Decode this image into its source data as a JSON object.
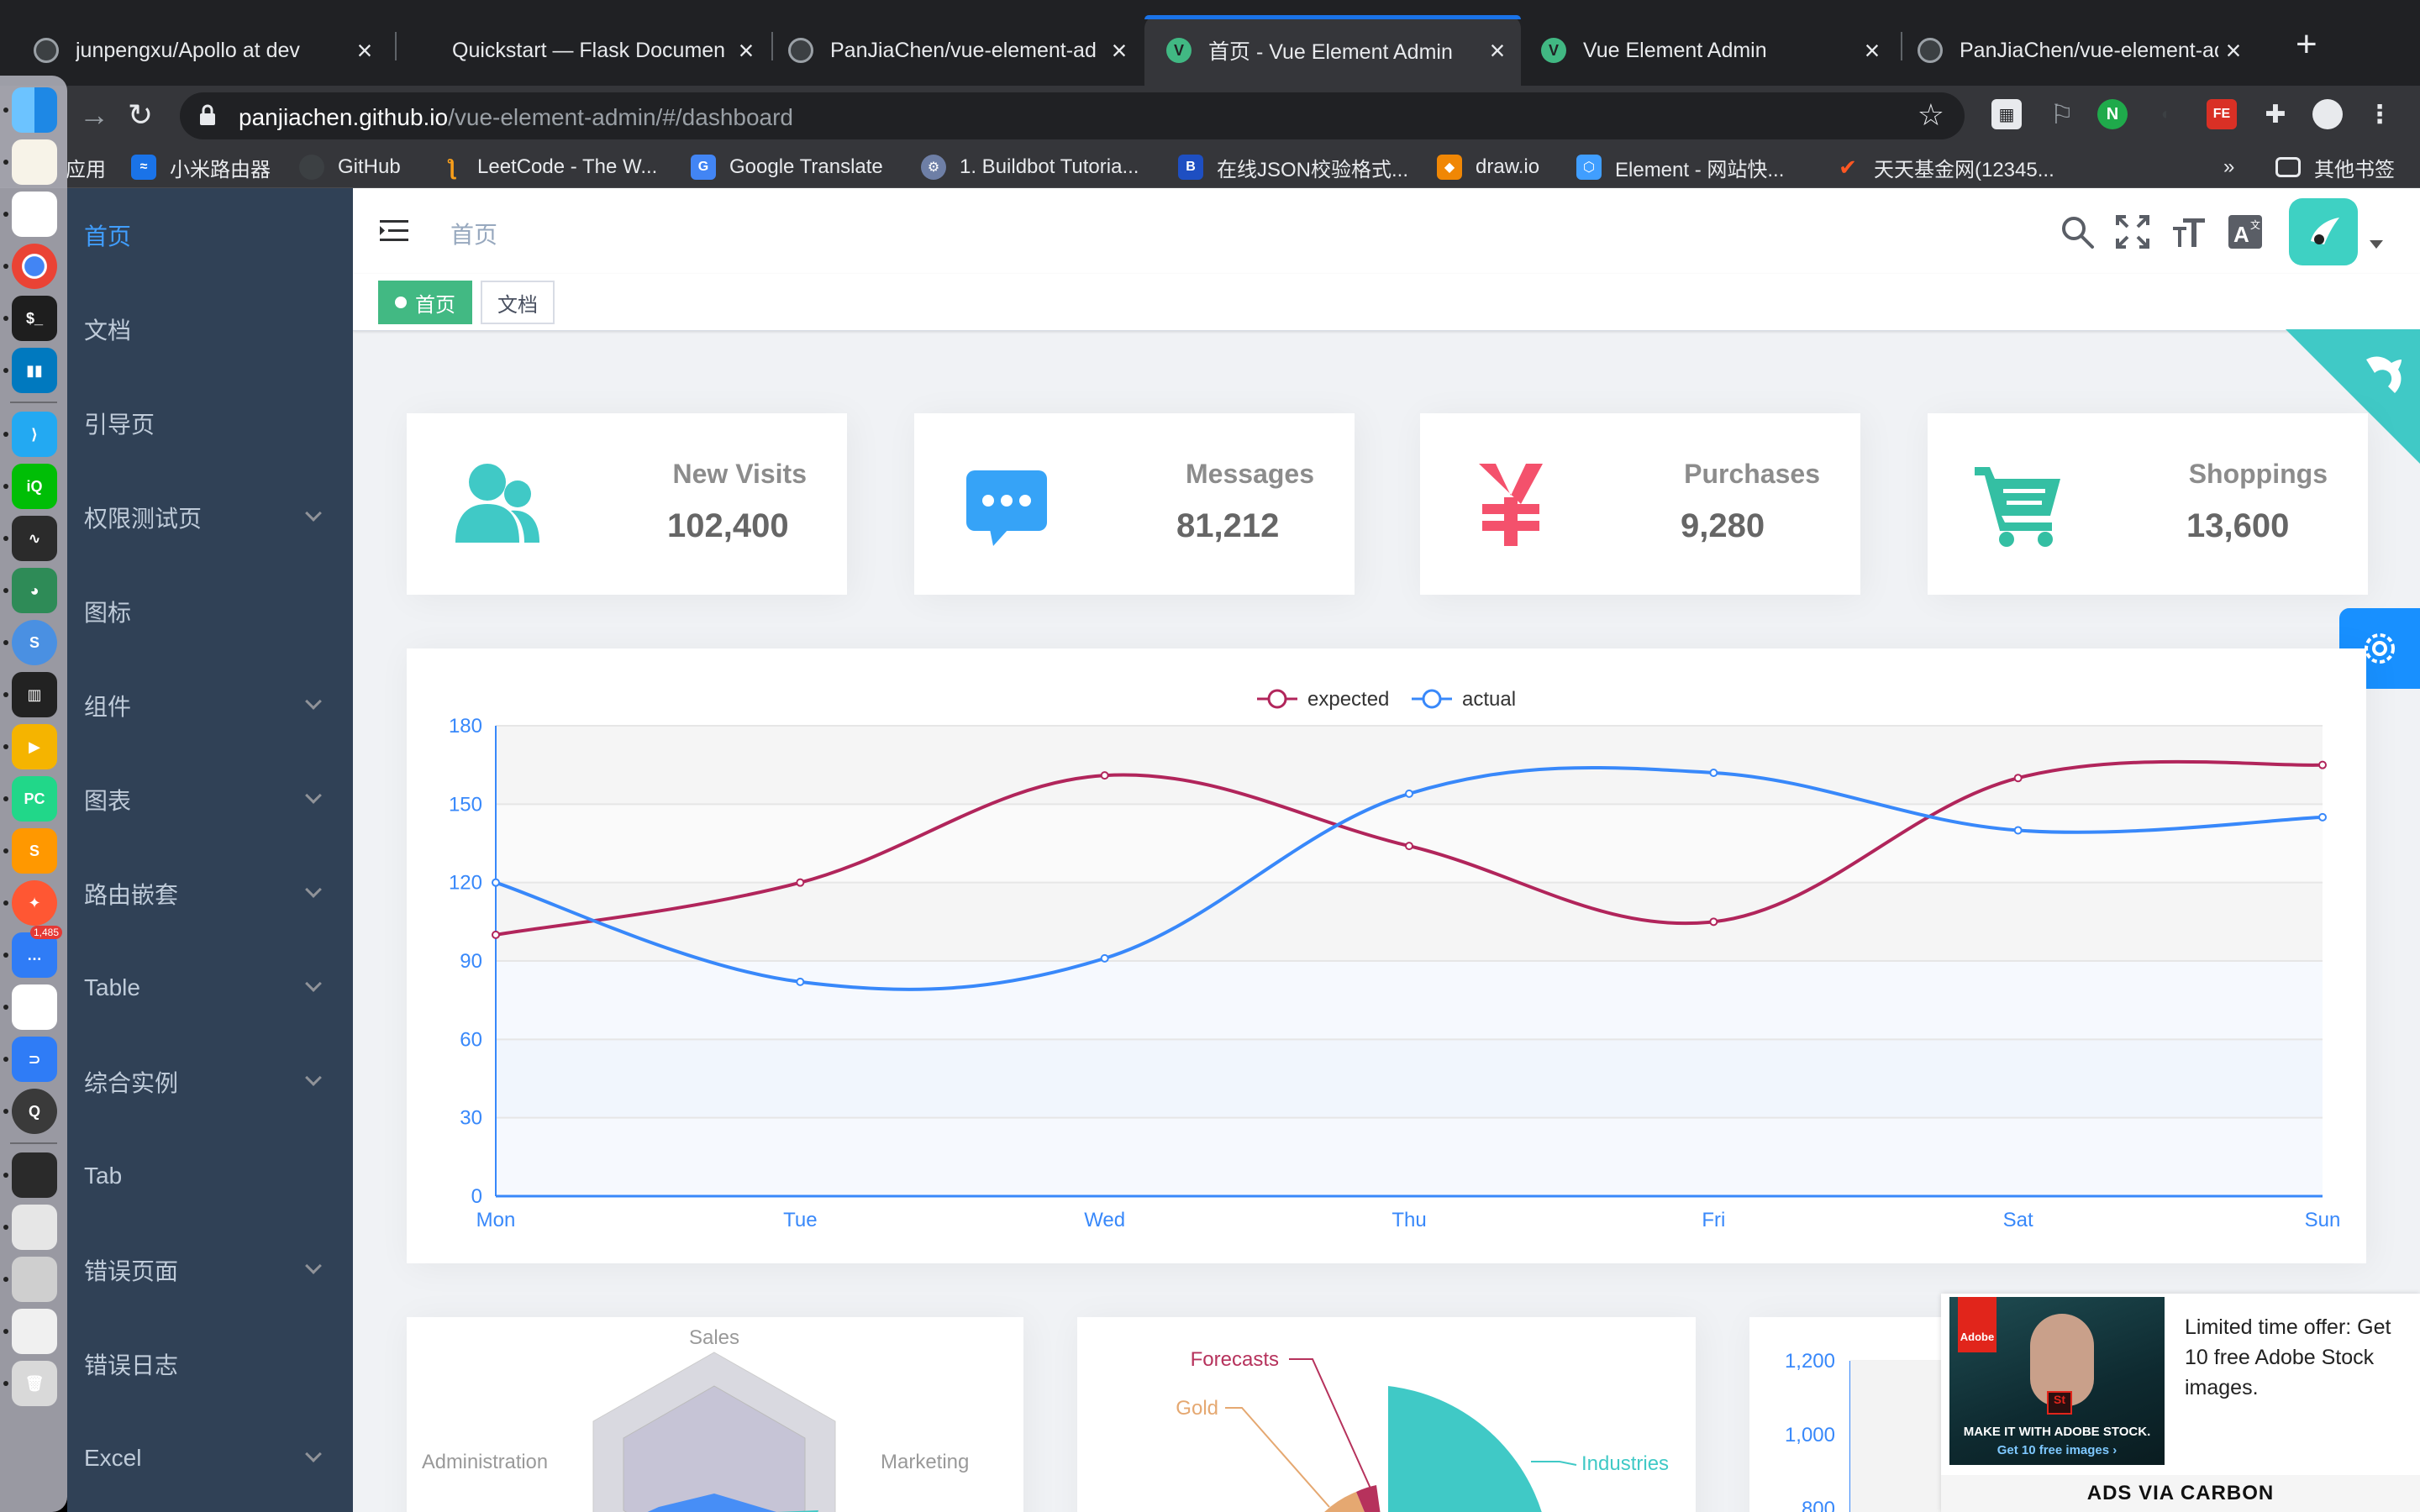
{
  "browser": {
    "tabs": [
      {
        "title": "junpengxu/Apollo at dev",
        "icon": "github-icon",
        "active": false
      },
      {
        "title": "Quickstart — Flask Documen",
        "icon": "flask-icon",
        "active": false
      },
      {
        "title": "PanJiaChen/vue-element-ad",
        "icon": "github-icon",
        "active": false
      },
      {
        "title": "首页 - Vue Element Admin",
        "icon": "vue-icon",
        "active": true
      },
      {
        "title": "Vue Element Admin",
        "icon": "vue-icon",
        "active": false
      },
      {
        "title": "PanJiaChen/vue-element-ad",
        "icon": "github-icon",
        "active": false
      }
    ],
    "url_host": "panjiachen.github.io",
    "url_path": "/vue-element-admin/#/dashboard",
    "bookmarks": [
      {
        "label": "应用"
      },
      {
        "label": "小米路由器"
      },
      {
        "label": "GitHub"
      },
      {
        "label": "LeetCode - The W..."
      },
      {
        "label": "Google Translate"
      },
      {
        "label": "1. Buildbot Tutoria..."
      },
      {
        "label": "在线JSON校验格式..."
      },
      {
        "label": "draw.io"
      },
      {
        "label": "Element - 网站快..."
      },
      {
        "label": "天天基金网(12345..."
      }
    ],
    "bookmarks_more": "»",
    "other_bookmarks": "其他书签"
  },
  "dock": {
    "badge": "1,485"
  },
  "sidebar": {
    "items": [
      {
        "label": "首页",
        "active": true,
        "submenu": false
      },
      {
        "label": "文档",
        "active": false,
        "submenu": false
      },
      {
        "label": "引导页",
        "active": false,
        "submenu": false
      },
      {
        "label": "权限测试页",
        "active": false,
        "submenu": true
      },
      {
        "label": "图标",
        "active": false,
        "submenu": false
      },
      {
        "label": "组件",
        "active": false,
        "submenu": true
      },
      {
        "label": "图表",
        "active": false,
        "submenu": true
      },
      {
        "label": "路由嵌套",
        "active": false,
        "submenu": true
      },
      {
        "label": "Table",
        "active": false,
        "submenu": true
      },
      {
        "label": "综合实例",
        "active": false,
        "submenu": true
      },
      {
        "label": "Tab",
        "active": false,
        "submenu": false
      },
      {
        "label": "错误页面",
        "active": false,
        "submenu": true
      },
      {
        "label": "错误日志",
        "active": false,
        "submenu": false
      },
      {
        "label": "Excel",
        "active": false,
        "submenu": true
      }
    ]
  },
  "navbar": {
    "breadcrumb": "首页"
  },
  "tags": [
    {
      "label": "首页",
      "active": true
    },
    {
      "label": "文档",
      "active": false
    }
  ],
  "stats": [
    {
      "label": "New Visits",
      "value": "102,400",
      "icon": "peoples-icon",
      "color": "#40c9c6"
    },
    {
      "label": "Messages",
      "value": "81,212",
      "icon": "message-icon",
      "color": "#36a3f7"
    },
    {
      "label": "Purchases",
      "value": "9,280",
      "icon": "money-icon",
      "color": "#f4516c"
    },
    {
      "label": "Shoppings",
      "value": "13,600",
      "icon": "shopping-cart-icon",
      "color": "#34bfa3"
    }
  ],
  "chart_data": [
    {
      "type": "line",
      "categories": [
        "Mon",
        "Tue",
        "Wed",
        "Thu",
        "Fri",
        "Sat",
        "Sun"
      ],
      "series": [
        {
          "name": "expected",
          "values": [
            100,
            120,
            161,
            134,
            105,
            160,
            165
          ],
          "color": "#b1255b"
        },
        {
          "name": "actual",
          "values": [
            120,
            82,
            91,
            154,
            162,
            140,
            145
          ],
          "color": "#3888fa"
        }
      ],
      "yticks": [
        0,
        30,
        60,
        90,
        120,
        150,
        180
      ],
      "ylim": [
        0,
        180
      ],
      "legend": "top-center",
      "grid": true
    },
    {
      "type": "radar",
      "indicators": [
        "Sales",
        "Administration",
        "Marketing"
      ],
      "partial": true
    },
    {
      "type": "pie",
      "labels": [
        "Forecasts",
        "Gold",
        "Industries"
      ],
      "partial": true
    },
    {
      "type": "bar",
      "yticks": [
        1200,
        1000,
        800
      ],
      "partial": true
    }
  ],
  "radar_labels": {
    "top": "Sales",
    "left": "Administration",
    "right": "Marketing"
  },
  "pie_labels": {
    "a": "Forecasts",
    "b": "Gold",
    "c": "Industries"
  },
  "bar_ticks": [
    "1,200",
    "1,000",
    "800"
  ],
  "ad": {
    "text": "Limited time offer: Get 10 free Adobe Stock images.",
    "img_caption1": "MAKE IT WITH ADOBE STOCK.",
    "img_caption2": "Get 10 free images ›",
    "brand": "Adobe",
    "label": "ADS VIA CARBON"
  }
}
